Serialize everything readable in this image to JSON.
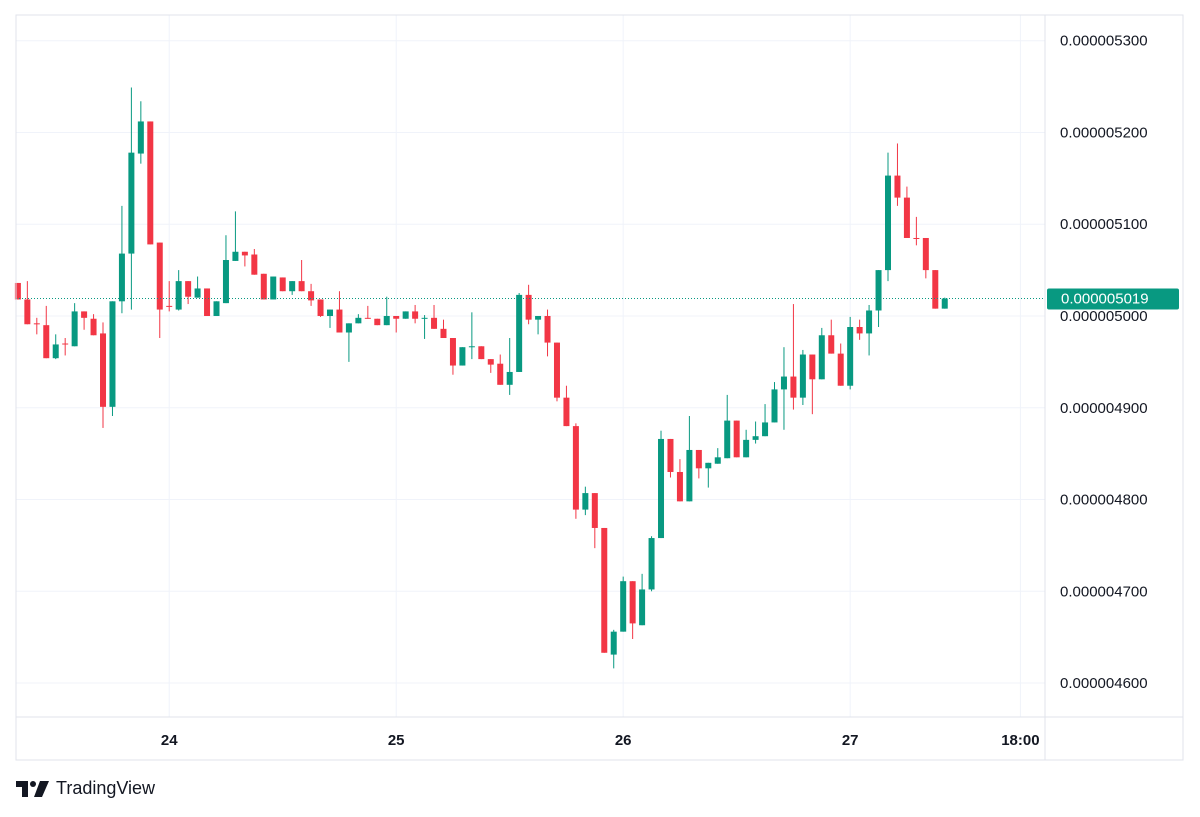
{
  "chart_data": {
    "type": "candlestick",
    "title": "",
    "value_unit": "1e-9",
    "interval": "1h",
    "y_ticks": [
      "0.000005300",
      "0.000005200",
      "0.000005100",
      "0.000005000",
      "0.000004900",
      "0.000004800",
      "0.000004700",
      "0.000004600"
    ],
    "y_tick_values": [
      5300,
      5200,
      5100,
      5000,
      4900,
      4800,
      4700,
      4600
    ],
    "ylim": [
      4563,
      5328
    ],
    "x_ticks": [
      {
        "label": "24",
        "index": 16
      },
      {
        "label": "25",
        "index": 40
      },
      {
        "label": "26",
        "index": 64
      },
      {
        "label": "27",
        "index": 88
      },
      {
        "label": "18:00",
        "index": 106
      }
    ],
    "x_range": [
      -0.2,
      108.6
    ],
    "last_price_label": "0.000005019",
    "last_price": 5019,
    "up_color": "#089981",
    "down_color": "#f23645",
    "ohlc": [
      [
        5036,
        5036,
        5018,
        5018
      ],
      [
        5018,
        5038,
        4991,
        4991
      ],
      [
        4992,
        4998,
        4980,
        4991
      ],
      [
        4990,
        5011,
        4954,
        4954
      ],
      [
        4954,
        4980,
        4953,
        4969
      ],
      [
        4970,
        4976,
        4957,
        4969
      ],
      [
        4967,
        5014,
        4967,
        5005
      ],
      [
        5005,
        5005,
        4985,
        4998
      ],
      [
        4997,
        5002,
        4979,
        4979
      ],
      [
        4981,
        4993,
        4878,
        4901
      ],
      [
        4901,
        5016,
        4891,
        5016
      ],
      [
        5016,
        5120,
        5003,
        5068
      ],
      [
        5068,
        5249,
        5007,
        5178
      ],
      [
        5177,
        5234,
        5166,
        5212
      ],
      [
        5212,
        5212,
        5078,
        5078
      ],
      [
        5080,
        5080,
        4976,
        5007
      ],
      [
        5011,
        5038,
        5005,
        5010
      ],
      [
        5007,
        5050,
        5006,
        5038
      ],
      [
        5038,
        5038,
        5013,
        5021
      ],
      [
        5020,
        5043,
        5020,
        5030
      ],
      [
        5030,
        5030,
        5000,
        5000
      ],
      [
        5000,
        5016,
        5000,
        5016
      ],
      [
        5014,
        5088,
        5014,
        5061
      ],
      [
        5060,
        5114,
        5060,
        5070
      ],
      [
        5070,
        5070,
        5054,
        5066
      ],
      [
        5067,
        5073,
        5045,
        5045
      ],
      [
        5046,
        5046,
        5018,
        5018
      ],
      [
        5018,
        5043,
        5018,
        5043
      ],
      [
        5042,
        5042,
        5027,
        5027
      ],
      [
        5027,
        5038,
        5023,
        5038
      ],
      [
        5038,
        5061,
        5027,
        5027
      ],
      [
        5027,
        5035,
        5011,
        5017
      ],
      [
        5018,
        5018,
        4999,
        5000
      ],
      [
        5000,
        5007,
        4987,
        5007
      ],
      [
        5007,
        5027,
        4982,
        4982
      ],
      [
        4982,
        4992,
        4950,
        4992
      ],
      [
        4992,
        5002,
        4992,
        4998
      ],
      [
        4998,
        5011,
        4997,
        4997
      ],
      [
        4997,
        4997,
        4990,
        4990
      ],
      [
        4990,
        5021,
        4990,
        5000
      ],
      [
        5000,
        5000,
        4982,
        4997
      ],
      [
        4997,
        5005,
        4997,
        5005
      ],
      [
        5005,
        5012,
        4992,
        4997
      ],
      [
        4997,
        5001,
        4975,
        4998
      ],
      [
        4998,
        5012,
        4986,
        4986
      ],
      [
        4986,
        4996,
        4976,
        4976
      ],
      [
        4976,
        4976,
        4936,
        4946
      ],
      [
        4946,
        4966,
        4946,
        4966
      ],
      [
        4966,
        5004,
        4953,
        4967
      ],
      [
        4967,
        4967,
        4953,
        4953
      ],
      [
        4953,
        4953,
        4938,
        4947
      ],
      [
        4948,
        4958,
        4925,
        4925
      ],
      [
        4925,
        4976,
        4914,
        4939
      ],
      [
        4939,
        5025,
        4939,
        5023
      ],
      [
        5023,
        5034,
        4991,
        4996
      ],
      [
        4996,
        5000,
        4980,
        5000
      ],
      [
        5000,
        5007,
        4956,
        4971
      ],
      [
        4971,
        4971,
        4907,
        4911
      ],
      [
        4911,
        4924,
        4880,
        4880
      ],
      [
        4880,
        4883,
        4779,
        4789
      ],
      [
        4789,
        4814,
        4783,
        4807
      ],
      [
        4807,
        4807,
        4747,
        4769
      ],
      [
        4769,
        4769,
        4633,
        4633
      ],
      [
        4631,
        4658,
        4616,
        4656
      ],
      [
        4656,
        4716,
        4656,
        4711
      ],
      [
        4711,
        4711,
        4648,
        4665
      ],
      [
        4663,
        4719,
        4663,
        4702
      ],
      [
        4702,
        4760,
        4700,
        4758
      ],
      [
        4758,
        4875,
        4758,
        4866
      ],
      [
        4866,
        4866,
        4824,
        4830
      ],
      [
        4830,
        4844,
        4798,
        4798
      ],
      [
        4798,
        4891,
        4798,
        4854
      ],
      [
        4854,
        4854,
        4823,
        4834
      ],
      [
        4834,
        4840,
        4813,
        4840
      ],
      [
        4839,
        4856,
        4839,
        4846
      ],
      [
        4845,
        4914,
        4845,
        4886
      ],
      [
        4886,
        4886,
        4846,
        4846
      ],
      [
        4846,
        4876,
        4846,
        4865
      ],
      [
        4865,
        4885,
        4861,
        4869
      ],
      [
        4869,
        4904,
        4869,
        4884
      ],
      [
        4884,
        4928,
        4884,
        4920
      ],
      [
        4920,
        4966,
        4876,
        4934
      ],
      [
        4934,
        5013,
        4898,
        4911
      ],
      [
        4911,
        4963,
        4903,
        4958
      ],
      [
        4958,
        4958,
        4893,
        4931
      ],
      [
        4931,
        4987,
        4931,
        4979
      ],
      [
        4979,
        4996,
        4959,
        4959
      ],
      [
        4959,
        4970,
        4924,
        4924
      ],
      [
        4924,
        4999,
        4920,
        4988
      ],
      [
        4988,
        4996,
        4974,
        4981
      ],
      [
        4981,
        5012,
        4957,
        5006
      ],
      [
        5006,
        5050,
        4988,
        5050
      ],
      [
        5050,
        5178,
        5038,
        5153
      ],
      [
        5153,
        5188,
        5120,
        5129
      ],
      [
        5129,
        5141,
        5085,
        5085
      ],
      [
        5085,
        5108,
        5077,
        5084
      ],
      [
        5085,
        5085,
        5041,
        5050
      ],
      [
        5050,
        5050,
        5008,
        5008
      ],
      [
        5008,
        5020,
        5008,
        5019
      ]
    ]
  },
  "branding": {
    "logo_text": "TradingView"
  }
}
